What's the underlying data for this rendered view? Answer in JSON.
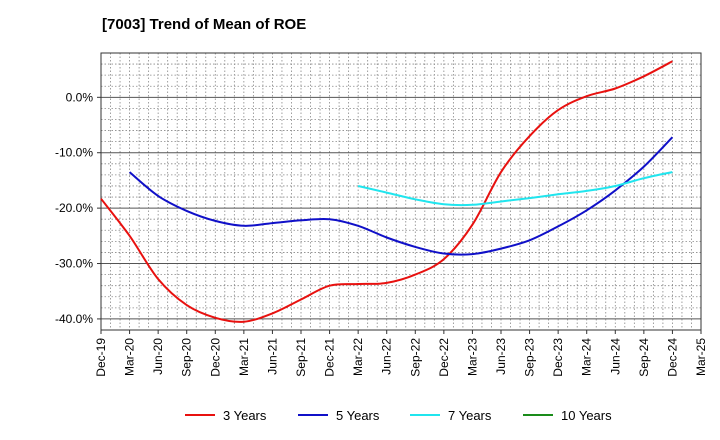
{
  "chart_data": {
    "type": "line",
    "title": "[7003]  Trend of Mean of ROE",
    "xlabel": "",
    "ylabel": "",
    "ylim": [
      -42,
      8
    ],
    "y_ticks": [
      0,
      -10,
      -20,
      -30,
      -40
    ],
    "y_tick_labels": [
      "0.0%",
      "-10.0%",
      "-20.0%",
      "-30.0%",
      "-40.0%"
    ],
    "x_ticks": [
      "Dec-19",
      "Mar-20",
      "Jun-20",
      "Sep-20",
      "Dec-20",
      "Mar-21",
      "Jun-21",
      "Sep-21",
      "Dec-21",
      "Mar-22",
      "Jun-22",
      "Sep-22",
      "Dec-22",
      "Mar-23",
      "Jun-23",
      "Sep-23",
      "Dec-23",
      "Mar-24",
      "Jun-24",
      "Sep-24",
      "Dec-24",
      "Mar-25"
    ],
    "grid": true,
    "legend_position": "bottom",
    "series": [
      {
        "name": "3 Years",
        "color": "#e8110f",
        "points": [
          [
            "Dec-19",
            -18.3
          ],
          [
            "Mar-20",
            -25.0
          ],
          [
            "Jun-20",
            -32.8
          ],
          [
            "Sep-20",
            -37.5
          ],
          [
            "Dec-20",
            -39.8
          ],
          [
            "Mar-21",
            -40.5
          ],
          [
            "Jun-21",
            -39.0
          ],
          [
            "Sep-21",
            -36.5
          ],
          [
            "Dec-21",
            -34.0
          ],
          [
            "Mar-22",
            -33.7
          ],
          [
            "Jun-22",
            -33.5
          ],
          [
            "Sep-22",
            -32.0
          ],
          [
            "Dec-22",
            -29.2
          ],
          [
            "Mar-23",
            -23.0
          ],
          [
            "Jun-23",
            -13.5
          ],
          [
            "Sep-23",
            -7.0
          ],
          [
            "Dec-23",
            -2.3
          ],
          [
            "Mar-24",
            0.2
          ],
          [
            "Jun-24",
            1.6
          ],
          [
            "Sep-24",
            3.8
          ],
          [
            "Dec-24",
            6.5
          ]
        ]
      },
      {
        "name": "5 Years",
        "color": "#1010c8",
        "points": [
          [
            "Mar-20",
            -13.5
          ],
          [
            "Jun-20",
            -17.8
          ],
          [
            "Sep-20",
            -20.5
          ],
          [
            "Dec-20",
            -22.3
          ],
          [
            "Mar-21",
            -23.2
          ],
          [
            "Jun-21",
            -22.7
          ],
          [
            "Sep-21",
            -22.2
          ],
          [
            "Dec-21",
            -22.0
          ],
          [
            "Mar-22",
            -23.2
          ],
          [
            "Jun-22",
            -25.3
          ],
          [
            "Sep-22",
            -27.0
          ],
          [
            "Dec-22",
            -28.2
          ],
          [
            "Mar-23",
            -28.3
          ],
          [
            "Jun-23",
            -27.3
          ],
          [
            "Sep-23",
            -25.8
          ],
          [
            "Dec-23",
            -23.3
          ],
          [
            "Mar-24",
            -20.4
          ],
          [
            "Jun-24",
            -16.8
          ],
          [
            "Sep-24",
            -12.5
          ],
          [
            "Dec-24",
            -7.2
          ]
        ]
      },
      {
        "name": "7 Years",
        "color": "#20e5ee",
        "points": [
          [
            "Mar-22",
            -16.0
          ],
          [
            "Jun-22",
            -17.2
          ],
          [
            "Sep-22",
            -18.4
          ],
          [
            "Dec-22",
            -19.3
          ],
          [
            "Mar-23",
            -19.4
          ],
          [
            "Jun-23",
            -18.8
          ],
          [
            "Sep-23",
            -18.2
          ],
          [
            "Dec-23",
            -17.5
          ],
          [
            "Mar-24",
            -16.9
          ],
          [
            "Jun-24",
            -16.0
          ],
          [
            "Sep-24",
            -14.6
          ],
          [
            "Dec-24",
            -13.5
          ]
        ]
      },
      {
        "name": "10 Years",
        "color": "#1a8c1a",
        "points": []
      }
    ]
  }
}
